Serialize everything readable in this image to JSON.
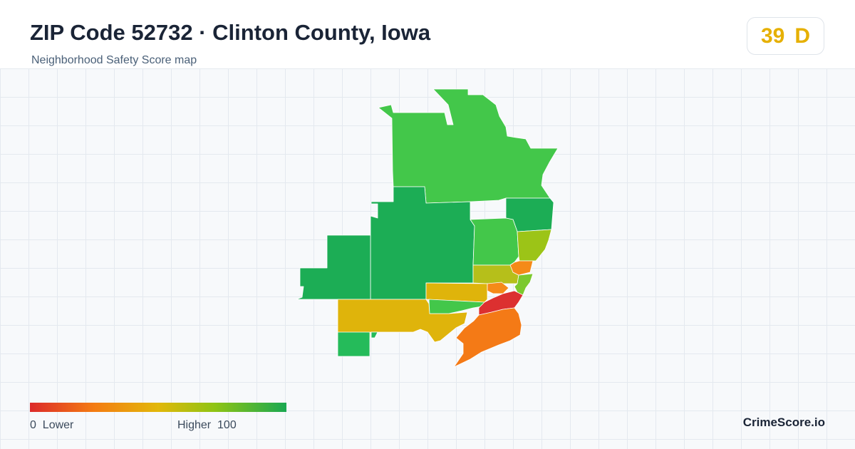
{
  "header": {
    "title": "ZIP Code 52732 · Clinton County, Iowa",
    "subtitle": "Neighborhood Safety Score map"
  },
  "score": {
    "value": "39",
    "grade": "D",
    "color": "#e6b000"
  },
  "legend": {
    "low_value": "0",
    "low_label": "Lower",
    "high_label": "Higher",
    "high_value": "100",
    "colors": [
      "#dc2a2a",
      "#f47c12",
      "#e2b80a",
      "#8fc414",
      "#1aa851"
    ]
  },
  "brand": "CrimeScore.io",
  "map": {
    "regions": [
      {
        "id": "north",
        "color": "#43c74a"
      },
      {
        "id": "west-large",
        "color": "#1cad55"
      },
      {
        "id": "west-lobe",
        "color": "#1cad55"
      },
      {
        "id": "northeast",
        "color": "#1cad55"
      },
      {
        "id": "east-mid-green",
        "color": "#43c74a"
      },
      {
        "id": "east-lime",
        "color": "#9cc417"
      },
      {
        "id": "center-olive",
        "color": "#b6bf1a"
      },
      {
        "id": "center-yellow",
        "color": "#dfb40b"
      },
      {
        "id": "southwest-yellow",
        "color": "#dfb40b"
      },
      {
        "id": "south-small-green",
        "color": "#25bb5a"
      },
      {
        "id": "center-band-green",
        "color": "#43c74a"
      },
      {
        "id": "east-strip-lime",
        "color": "#7cc92e"
      },
      {
        "id": "east-strip-orange",
        "color": "#f58a18"
      },
      {
        "id": "core-red",
        "color": "#dc3030"
      },
      {
        "id": "south-orange",
        "color": "#f47a16"
      }
    ]
  }
}
